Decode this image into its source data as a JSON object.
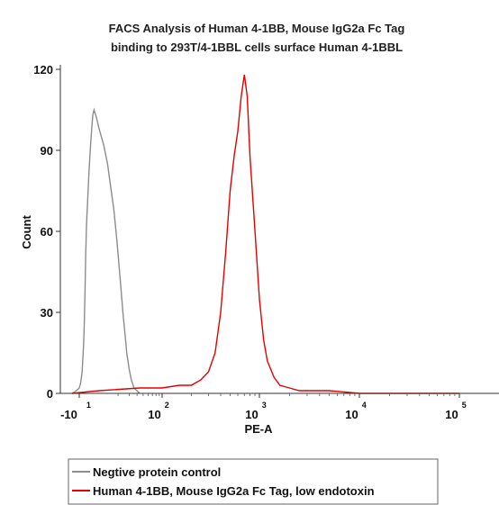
{
  "chart_data": {
    "type": "line",
    "title_line1": "FACS Analysis of  Human 4-1BB,  Mouse IgG2a Fc Tag",
    "title_line2": "binding to 293T/4-1BBL cells surface Human 4-1BBL",
    "xlabel": "PE-A",
    "ylabel": "Count",
    "ylim": [
      0,
      120
    ],
    "y_ticks": [
      "0",
      "30",
      "60",
      "90",
      "120"
    ],
    "x_scale": "biexponential",
    "x_ticks": [
      {
        "base": "-10",
        "exp": "1"
      },
      {
        "base": "10",
        "exp": "2"
      },
      {
        "base": "10",
        "exp": "3"
      },
      {
        "base": "10",
        "exp": "4"
      },
      {
        "base": "10",
        "exp": "5"
      }
    ],
    "grid": false,
    "legend_position": "bottom",
    "series": [
      {
        "name": "Negtive protein control",
        "color": "#8c8c8c",
        "x": [
          -15,
          -12,
          -10,
          -8,
          -6,
          -5,
          -4,
          -3,
          -2,
          -1,
          0,
          1,
          2,
          3,
          4,
          5,
          6,
          8,
          10,
          12,
          14,
          16,
          18,
          20,
          22,
          24,
          26,
          28,
          30,
          33,
          36,
          40,
          45,
          50
        ],
        "values": [
          0,
          1,
          2,
          4,
          8,
          13,
          18,
          26,
          38,
          52,
          62,
          72,
          82,
          90,
          97,
          103,
          105,
          102,
          98,
          92,
          85,
          76,
          68,
          58,
          48,
          38,
          29,
          22,
          15,
          9,
          5,
          2,
          1,
          0
        ]
      },
      {
        "name": "Human 4-1BB, Mouse IgG2a Fc Tag, low endotoxin",
        "color": "#e60000",
        "x": [
          -15,
          10,
          50,
          100,
          150,
          200,
          250,
          300,
          350,
          400,
          450,
          500,
          550,
          600,
          650,
          700,
          750,
          800,
          900,
          1000,
          1100,
          1200,
          1400,
          1600,
          2000,
          2500,
          3000,
          5000,
          10000,
          40000,
          100000
        ],
        "values": [
          0,
          1,
          2,
          2,
          3,
          3,
          5,
          8,
          15,
          30,
          52,
          75,
          88,
          97,
          110,
          118,
          110,
          88,
          60,
          35,
          20,
          12,
          6,
          3,
          2,
          1,
          1,
          1,
          0,
          0,
          0
        ]
      }
    ]
  }
}
